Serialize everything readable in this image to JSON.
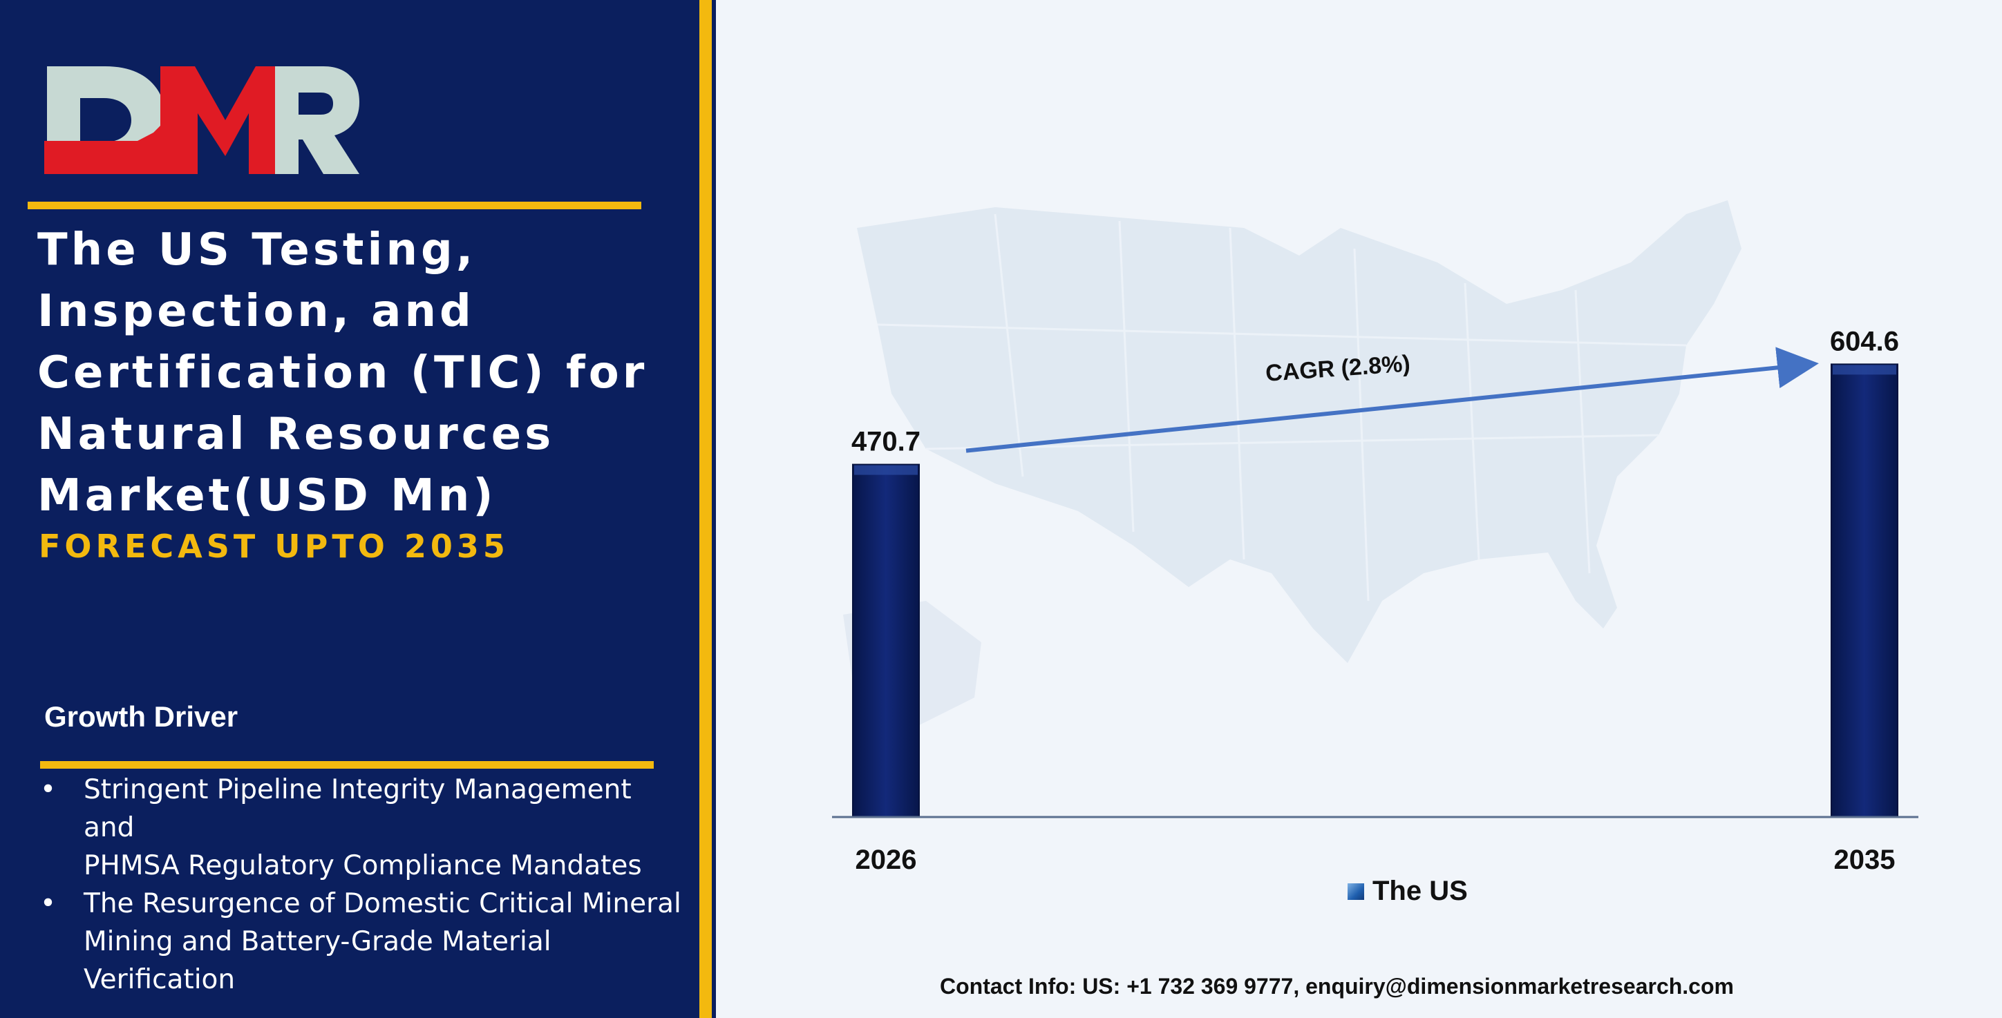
{
  "brand": {
    "logo_text": "DMR",
    "logo_colors": {
      "red": "#e01b24",
      "grey": "#c7d9d3"
    },
    "accent_color": "#f3b90f",
    "panel_color": "#0b1f5e"
  },
  "title_lines": [
    "The US Testing,",
    "Inspection, and",
    "Certification (TIC) for",
    "Natural Resources",
    "Market(USD Mn)"
  ],
  "subtitle": "FORECAST UPTO 2035",
  "growth_driver": {
    "heading": "Growth Driver",
    "bullet_symbol": "•",
    "items": [
      {
        "lines": [
          "Stringent Pipeline Integrity Management and",
          "PHMSA Regulatory Compliance Mandates"
        ]
      },
      {
        "lines": [
          "The Resurgence of Domestic Critical Mineral",
          "Mining and Battery-Grade Material",
          "Verification"
        ]
      }
    ]
  },
  "chart_data": {
    "type": "bar",
    "categories": [
      "2026",
      "2035"
    ],
    "series": [
      {
        "name": "The US",
        "values": [
          470.7,
          604.6
        ],
        "color": "#0b1f5e"
      }
    ],
    "data_labels": [
      "470.7",
      "604.6"
    ],
    "ylim": [
      0,
      640
    ],
    "annotation": "CAGR (2.8%)",
    "arrow_color": "#4472c4",
    "legend": "bottom-center",
    "grid": false
  },
  "contact": "Contact Info: US: +1 732 369 9777, enquiry@dimensionmarketresearch.com"
}
